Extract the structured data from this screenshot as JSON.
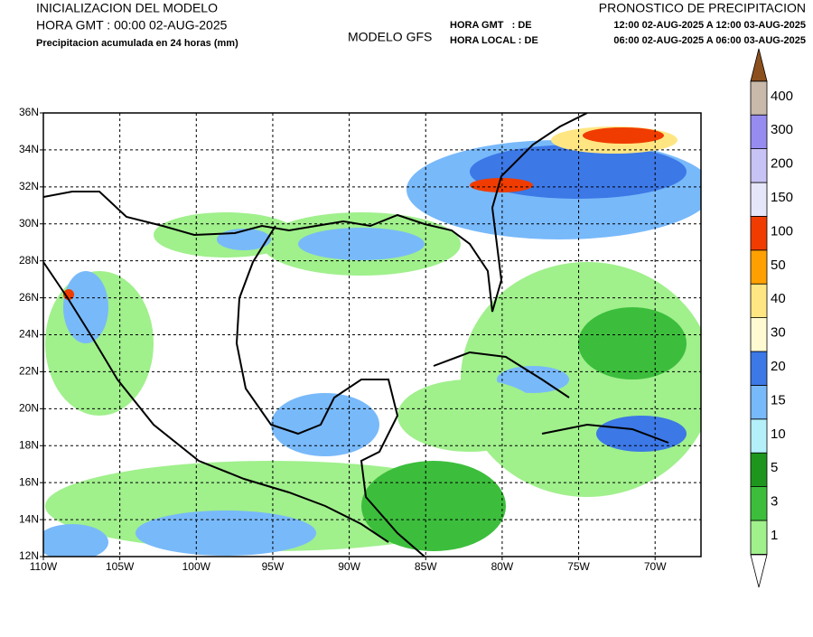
{
  "header": {
    "init_title": "INICIALIZACION DEL MODELO",
    "init_time": "HORA GMT : 00:00 02-AUG-2025",
    "subtitle": "Precipitacion acumulada en 24 horas (mm)",
    "model": "MODELO GFS",
    "forecast_title": "PRONOSTICO DE PRECIPITACION",
    "gmt_label": "HORA GMT   : DE",
    "gmt_range": "12:00 02-AUG-2025 A 12:00 03-AUG-2025",
    "local_label": "HORA LOCAL : DE",
    "local_range": "06:00 02-AUG-2025 A 06:00 03-AUG-2025"
  },
  "map": {
    "lonlim": [
      -110,
      -67
    ],
    "latlim": [
      12,
      36
    ],
    "lat_ticks": [
      {
        "value": 12,
        "label": "12N"
      },
      {
        "value": 14,
        "label": "14N"
      },
      {
        "value": 16,
        "label": "16N"
      },
      {
        "value": 18,
        "label": "18N"
      },
      {
        "value": 20,
        "label": "20N"
      },
      {
        "value": 22,
        "label": "22N"
      },
      {
        "value": 24,
        "label": "24N"
      },
      {
        "value": 26,
        "label": "26N"
      },
      {
        "value": 28,
        "label": "28N"
      },
      {
        "value": 30,
        "label": "30N"
      },
      {
        "value": 32,
        "label": "32N"
      },
      {
        "value": 34,
        "label": "34N"
      },
      {
        "value": 36,
        "label": "36N"
      }
    ],
    "lon_ticks": [
      {
        "value": -110,
        "label": "110W"
      },
      {
        "value": -105,
        "label": "105W"
      },
      {
        "value": -100,
        "label": "100W"
      },
      {
        "value": -95,
        "label": "95W"
      },
      {
        "value": -90,
        "label": "90W"
      },
      {
        "value": -85,
        "label": "85W"
      },
      {
        "value": -80,
        "label": "80W"
      },
      {
        "value": -75,
        "label": "75W"
      },
      {
        "value": -70,
        "label": "70W"
      }
    ]
  },
  "colorbar": {
    "levels": [
      1,
      3,
      5,
      10,
      15,
      20,
      30,
      40,
      50,
      100,
      150,
      200,
      300,
      400
    ],
    "colors": [
      "#a0f08c",
      "#3cbe3c",
      "#1e961e",
      "#b4f0fa",
      "#78b9fa",
      "#3c78e6",
      "#fffad2",
      "#ffe682",
      "#ffa000",
      "#f03c00",
      "#e6e6fa",
      "#c8c3f5",
      "#968cf0",
      "#c8b9aa"
    ],
    "top_color": "#8c501e",
    "bottom_color": "#ffffff"
  }
}
